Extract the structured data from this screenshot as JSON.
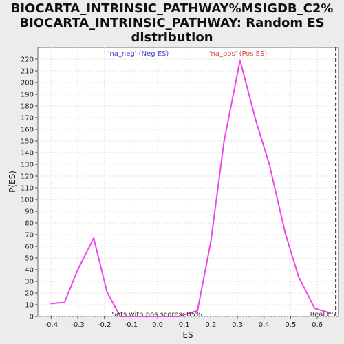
{
  "chart_data": {
    "type": "line",
    "title_lines": [
      "BIOCARTA_INTRINSIC_PATHWAY%MSIGDB_C2%",
      "BIOCARTA_INTRINSIC_PATHWAY: Random ES",
      "distribution"
    ],
    "xlabel": "ES",
    "ylabel": "P(ES)",
    "xlim": [
      -0.45,
      0.68
    ],
    "ylim": [
      0,
      230
    ],
    "x_ticks": [
      -0.4,
      -0.3,
      -0.2,
      -0.1,
      0.0,
      0.1,
      0.2,
      0.3,
      0.4,
      0.5,
      0.6
    ],
    "x_tick_labels": [
      "-0.4",
      "-0.3",
      "-0.2",
      "-0.1",
      "0.0",
      "0.1",
      "0.2",
      "0.3",
      "0.4",
      "0.5",
      "0.6"
    ],
    "y_ticks": [
      0,
      10,
      20,
      30,
      40,
      50,
      60,
      70,
      80,
      90,
      100,
      110,
      120,
      130,
      140,
      150,
      160,
      170,
      180,
      190,
      200,
      210,
      220
    ],
    "y_tick_labels": [
      "0",
      "10",
      "20",
      "30",
      "40",
      "50",
      "60",
      "70",
      "80",
      "90",
      "100",
      "110",
      "120",
      "130",
      "140",
      "150",
      "160",
      "170",
      "180",
      "190",
      "200",
      "210",
      "220"
    ],
    "grid": true,
    "series": [
      {
        "color": "#ee44ee",
        "x": [
          -0.4,
          -0.35,
          -0.3,
          -0.24,
          -0.19,
          -0.14,
          -0.08,
          -0.03,
          0.02,
          0.08,
          0.15,
          0.2,
          0.25,
          0.31,
          0.37,
          0.42,
          0.48,
          0.53,
          0.59,
          0.65
        ],
        "y": [
          11,
          12,
          40,
          67,
          21,
          0,
          0,
          0,
          0,
          0,
          5,
          64,
          150,
          219,
          167,
          130,
          71,
          34,
          7,
          3
        ]
      }
    ],
    "real_es": {
      "x": 0.67,
      "label": "Real ES",
      "color": "#333333"
    },
    "annotations": {
      "neg_label": "'na_neg' (Neg ES)",
      "neg_color": "#4444cc",
      "pos_label": "'na_pos' (Pos ES)",
      "pos_color": "#dd4444",
      "pos_scores": "Sets with pos scores: 85%"
    }
  }
}
